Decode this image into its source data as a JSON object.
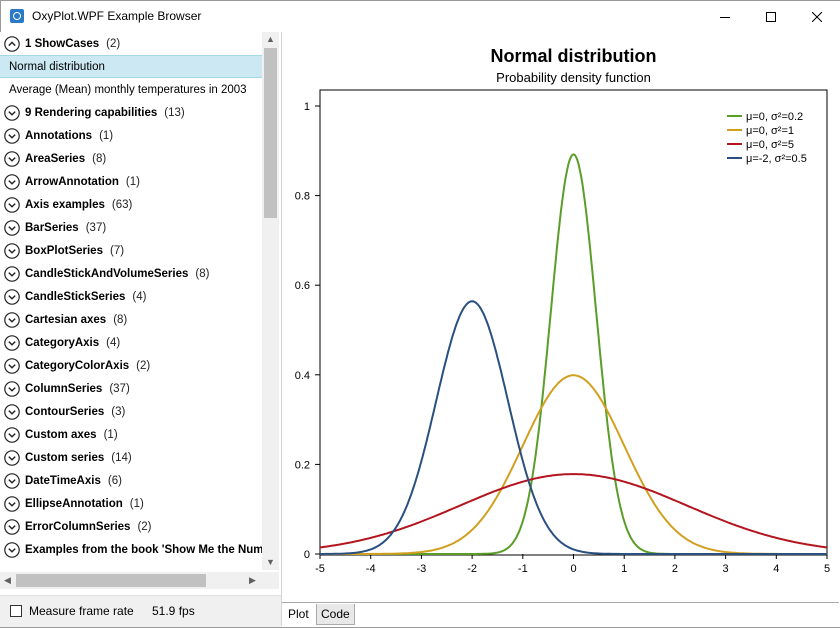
{
  "window": {
    "title": "OxyPlot.WPF Example Browser"
  },
  "tree": {
    "items": [
      {
        "kind": "group",
        "label": "1 ShowCases",
        "count": "(2)",
        "expanded": true
      },
      {
        "kind": "item",
        "label": "Normal distribution",
        "selected": true
      },
      {
        "kind": "item",
        "label": "Average (Mean) monthly temperatures in 2003"
      },
      {
        "kind": "group",
        "label": "9 Rendering capabilities",
        "count": "(13)"
      },
      {
        "kind": "group",
        "label": "Annotations",
        "count": "(1)"
      },
      {
        "kind": "group",
        "label": "AreaSeries",
        "count": "(8)"
      },
      {
        "kind": "group",
        "label": "ArrowAnnotation",
        "count": "(1)"
      },
      {
        "kind": "group",
        "label": "Axis examples",
        "count": "(63)"
      },
      {
        "kind": "group",
        "label": "BarSeries",
        "count": "(37)"
      },
      {
        "kind": "group",
        "label": "BoxPlotSeries",
        "count": "(7)"
      },
      {
        "kind": "group",
        "label": "CandleStickAndVolumeSeries",
        "count": "(8)"
      },
      {
        "kind": "group",
        "label": "CandleStickSeries",
        "count": "(4)"
      },
      {
        "kind": "group",
        "label": "Cartesian axes",
        "count": "(8)"
      },
      {
        "kind": "group",
        "label": "CategoryAxis",
        "count": "(4)"
      },
      {
        "kind": "group",
        "label": "CategoryColorAxis",
        "count": "(2)"
      },
      {
        "kind": "group",
        "label": "ColumnSeries",
        "count": "(37)"
      },
      {
        "kind": "group",
        "label": "ContourSeries",
        "count": "(3)"
      },
      {
        "kind": "group",
        "label": "Custom axes",
        "count": "(1)"
      },
      {
        "kind": "group",
        "label": "Custom series",
        "count": "(14)"
      },
      {
        "kind": "group",
        "label": "DateTimeAxis",
        "count": "(6)"
      },
      {
        "kind": "group",
        "label": "EllipseAnnotation",
        "count": "(1)"
      },
      {
        "kind": "group",
        "label": "ErrorColumnSeries",
        "count": "(2)"
      },
      {
        "kind": "group",
        "label": "Examples from the book 'Show Me the Num",
        "count": ""
      }
    ]
  },
  "status": {
    "measure_label": "Measure frame rate",
    "measure_checked": false,
    "fps": "51.9 fps"
  },
  "tabs": {
    "plot_label": "Plot",
    "code_label": "Code",
    "active": "Plot"
  },
  "chart_data": {
    "type": "line",
    "title": "Normal distribution",
    "subtitle": "Probability density function",
    "xlabel": "",
    "ylabel": "",
    "xlim": [
      -5,
      5
    ],
    "ylim": [
      0,
      1
    ],
    "x_ticks": [
      "-5",
      "-4",
      "-3",
      "-2",
      "-1",
      "0",
      "1",
      "2",
      "3",
      "4",
      "5"
    ],
    "y_ticks": [
      "0",
      "0.2",
      "0.4",
      "0.6",
      "0.8",
      "1"
    ],
    "grid": false,
    "legend_position": "top-right",
    "series": [
      {
        "name": "μ=0, σ²=0.2",
        "mean": 0,
        "variance": 0.2,
        "color": "#5a9e28"
      },
      {
        "name": "μ=0, σ²=1",
        "mean": 0,
        "variance": 1,
        "color": "#d2a020"
      },
      {
        "name": "μ=0, σ²=5",
        "mean": 0,
        "variance": 5,
        "color": "#b4141e"
      },
      {
        "name": "μ=-2, σ²=0.5",
        "mean": -2,
        "variance": 0.5,
        "color": "#2a5080"
      }
    ]
  }
}
